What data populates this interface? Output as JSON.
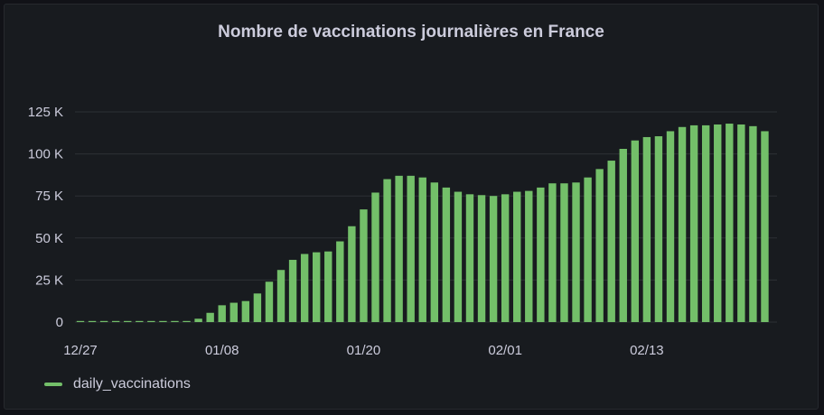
{
  "colors": {
    "bar": "#73bf69",
    "grid": "#2c3035",
    "text": "#ccccdc"
  },
  "chart_data": {
    "type": "bar",
    "title": "Nombre de vaccinations journalières en France",
    "xlabel": "",
    "ylabel": "",
    "ylim": [
      0,
      125000
    ],
    "y_ticks": [
      {
        "value": 0,
        "label": "0"
      },
      {
        "value": 25000,
        "label": "25 K"
      },
      {
        "value": 50000,
        "label": "50 K"
      },
      {
        "value": 75000,
        "label": "75 K"
      },
      {
        "value": 100000,
        "label": "100 K"
      },
      {
        "value": 125000,
        "label": "125 K"
      }
    ],
    "x_ticks": [
      {
        "index": 0,
        "label": "12/27"
      },
      {
        "index": 12,
        "label": "01/08"
      },
      {
        "index": 24,
        "label": "01/20"
      },
      {
        "index": 36,
        "label": "02/01"
      },
      {
        "index": 48,
        "label": "02/13"
      }
    ],
    "series": [
      {
        "name": "daily_vaccinations",
        "values": [
          0,
          0,
          0,
          0,
          0,
          0,
          0,
          0,
          0,
          500,
          2000,
          5500,
          10000,
          11500,
          12500,
          17000,
          24000,
          31000,
          37000,
          40500,
          41500,
          42000,
          48000,
          57000,
          67000,
          77000,
          85000,
          87000,
          87000,
          86000,
          83000,
          80000,
          77500,
          76000,
          75500,
          75000,
          76000,
          77500,
          78000,
          80000,
          82500,
          82500,
          83000,
          86000,
          91000,
          96000,
          103000,
          108000,
          110000,
          110500,
          113500,
          116000,
          117000,
          117000,
          117500,
          118000,
          117500,
          116500,
          113500
        ]
      }
    ]
  }
}
